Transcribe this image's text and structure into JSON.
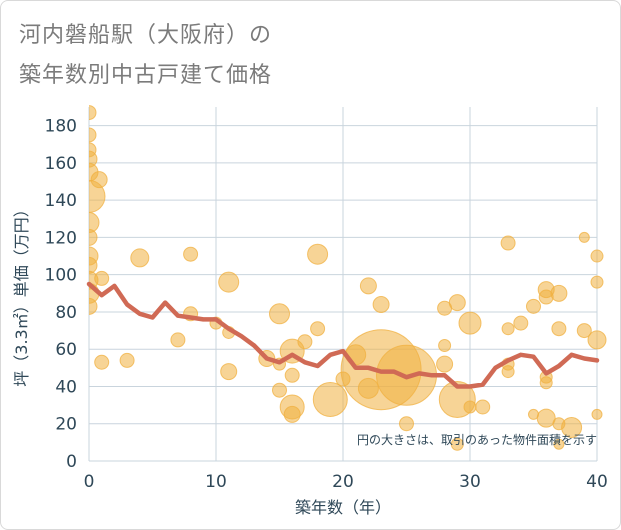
{
  "title_lines": [
    "河内磐船駅（大阪府）の",
    "築年数別中古戸建て価格"
  ],
  "colors": {
    "bubble": "#f0b040",
    "line": "#d06a55",
    "grid": "#c9d4dd",
    "axis_text": "#2f4858",
    "title": "#7b7b7b"
  },
  "chart_data": {
    "type": "scatter",
    "title": "河内磐船駅（大阪府）の築年数別中古戸建て価格",
    "xlabel": "築年数（年）",
    "ylabel": "坪（3.3㎡）単価（万円）",
    "xlim": [
      0,
      40
    ],
    "ylim": [
      0,
      190
    ],
    "xticks": [
      0,
      10,
      20,
      30,
      40
    ],
    "yticks": [
      0,
      20,
      40,
      60,
      80,
      100,
      120,
      140,
      160,
      180
    ],
    "grid": true,
    "note": "円の大きさは、取引のあった物件面積を示す",
    "series": [
      {
        "type": "bubble",
        "points": [
          {
            "x": 0,
            "y": 187,
            "s": 7
          },
          {
            "x": 0,
            "y": 175,
            "s": 7
          },
          {
            "x": 0,
            "y": 167,
            "s": 7
          },
          {
            "x": 0,
            "y": 162,
            "s": 8
          },
          {
            "x": 0,
            "y": 155,
            "s": 9
          },
          {
            "x": 0,
            "y": 142,
            "s": 16
          },
          {
            "x": 0,
            "y": 128,
            "s": 10
          },
          {
            "x": 0,
            "y": 120,
            "s": 8
          },
          {
            "x": 0,
            "y": 110,
            "s": 9
          },
          {
            "x": 0,
            "y": 105,
            "s": 8
          },
          {
            "x": 0,
            "y": 97,
            "s": 9
          },
          {
            "x": 0,
            "y": 90,
            "s": 10
          },
          {
            "x": 0,
            "y": 83,
            "s": 8
          },
          {
            "x": 0.8,
            "y": 151,
            "s": 8
          },
          {
            "x": 1,
            "y": 98,
            "s": 7
          },
          {
            "x": 1,
            "y": 53,
            "s": 7
          },
          {
            "x": 3,
            "y": 54,
            "s": 7
          },
          {
            "x": 4,
            "y": 109,
            "s": 9
          },
          {
            "x": 7,
            "y": 65,
            "s": 7
          },
          {
            "x": 8,
            "y": 111,
            "s": 7
          },
          {
            "x": 8,
            "y": 79,
            "s": 7
          },
          {
            "x": 10,
            "y": 74,
            "s": 6
          },
          {
            "x": 11,
            "y": 96,
            "s": 10
          },
          {
            "x": 11,
            "y": 69,
            "s": 6
          },
          {
            "x": 11,
            "y": 48,
            "s": 8
          },
          {
            "x": 14,
            "y": 55,
            "s": 8
          },
          {
            "x": 15,
            "y": 79,
            "s": 10
          },
          {
            "x": 15,
            "y": 52,
            "s": 6
          },
          {
            "x": 15,
            "y": 38,
            "s": 7
          },
          {
            "x": 16,
            "y": 59,
            "s": 12
          },
          {
            "x": 16,
            "y": 46,
            "s": 7
          },
          {
            "x": 16,
            "y": 29,
            "s": 12
          },
          {
            "x": 16,
            "y": 25,
            "s": 8
          },
          {
            "x": 17,
            "y": 64,
            "s": 7
          },
          {
            "x": 18,
            "y": 111,
            "s": 10
          },
          {
            "x": 18,
            "y": 71,
            "s": 7
          },
          {
            "x": 19,
            "y": 33,
            "s": 17
          },
          {
            "x": 20,
            "y": 44,
            "s": 7
          },
          {
            "x": 21,
            "y": 57,
            "s": 10
          },
          {
            "x": 22,
            "y": 94,
            "s": 8
          },
          {
            "x": 22,
            "y": 39,
            "s": 10
          },
          {
            "x": 23,
            "y": 84,
            "s": 8
          },
          {
            "x": 23,
            "y": 49,
            "s": 40
          },
          {
            "x": 25,
            "y": 46,
            "s": 30
          },
          {
            "x": 25,
            "y": 20,
            "s": 7
          },
          {
            "x": 28,
            "y": 82,
            "s": 7
          },
          {
            "x": 28,
            "y": 62,
            "s": 6
          },
          {
            "x": 28,
            "y": 52,
            "s": 8
          },
          {
            "x": 29,
            "y": 85,
            "s": 8
          },
          {
            "x": 29,
            "y": 33,
            "s": 18
          },
          {
            "x": 29,
            "y": 9,
            "s": 6
          },
          {
            "x": 30,
            "y": 74,
            "s": 11
          },
          {
            "x": 30,
            "y": 29,
            "s": 6
          },
          {
            "x": 31,
            "y": 29,
            "s": 7
          },
          {
            "x": 33,
            "y": 117,
            "s": 7
          },
          {
            "x": 33,
            "y": 71,
            "s": 6
          },
          {
            "x": 33,
            "y": 52,
            "s": 6
          },
          {
            "x": 33,
            "y": 48,
            "s": 6
          },
          {
            "x": 34,
            "y": 74,
            "s": 7
          },
          {
            "x": 35,
            "y": 83,
            "s": 7
          },
          {
            "x": 35,
            "y": 25,
            "s": 5
          },
          {
            "x": 36,
            "y": 92,
            "s": 8
          },
          {
            "x": 36,
            "y": 88,
            "s": 7
          },
          {
            "x": 36,
            "y": 45,
            "s": 6
          },
          {
            "x": 36,
            "y": 42,
            "s": 6
          },
          {
            "x": 36,
            "y": 23,
            "s": 9
          },
          {
            "x": 37,
            "y": 90,
            "s": 8
          },
          {
            "x": 37,
            "y": 71,
            "s": 7
          },
          {
            "x": 37,
            "y": 20,
            "s": 6
          },
          {
            "x": 37,
            "y": 9,
            "s": 5
          },
          {
            "x": 38,
            "y": 18,
            "s": 10
          },
          {
            "x": 39,
            "y": 120,
            "s": 5
          },
          {
            "x": 39,
            "y": 70,
            "s": 7
          },
          {
            "x": 40,
            "y": 110,
            "s": 6
          },
          {
            "x": 40,
            "y": 96,
            "s": 6
          },
          {
            "x": 40,
            "y": 65,
            "s": 9
          },
          {
            "x": 40,
            "y": 25,
            "s": 5
          }
        ]
      },
      {
        "type": "line",
        "x": [
          0,
          1,
          2,
          3,
          4,
          5,
          6,
          7,
          8,
          9,
          10,
          11,
          12,
          13,
          14,
          15,
          16,
          17,
          18,
          19,
          20,
          21,
          22,
          23,
          24,
          25,
          26,
          27,
          28,
          29,
          30,
          31,
          32,
          33,
          34,
          35,
          36,
          37,
          38,
          39,
          40
        ],
        "y": [
          95,
          89,
          94,
          84,
          79,
          77,
          85,
          78,
          77,
          76,
          76,
          71,
          67,
          62,
          55,
          53,
          57,
          53,
          51,
          57,
          59,
          50,
          50,
          48,
          48,
          45,
          47,
          46,
          46,
          40,
          40,
          41,
          50,
          54,
          57,
          56,
          47,
          51,
          57,
          55,
          54
        ]
      }
    ]
  }
}
